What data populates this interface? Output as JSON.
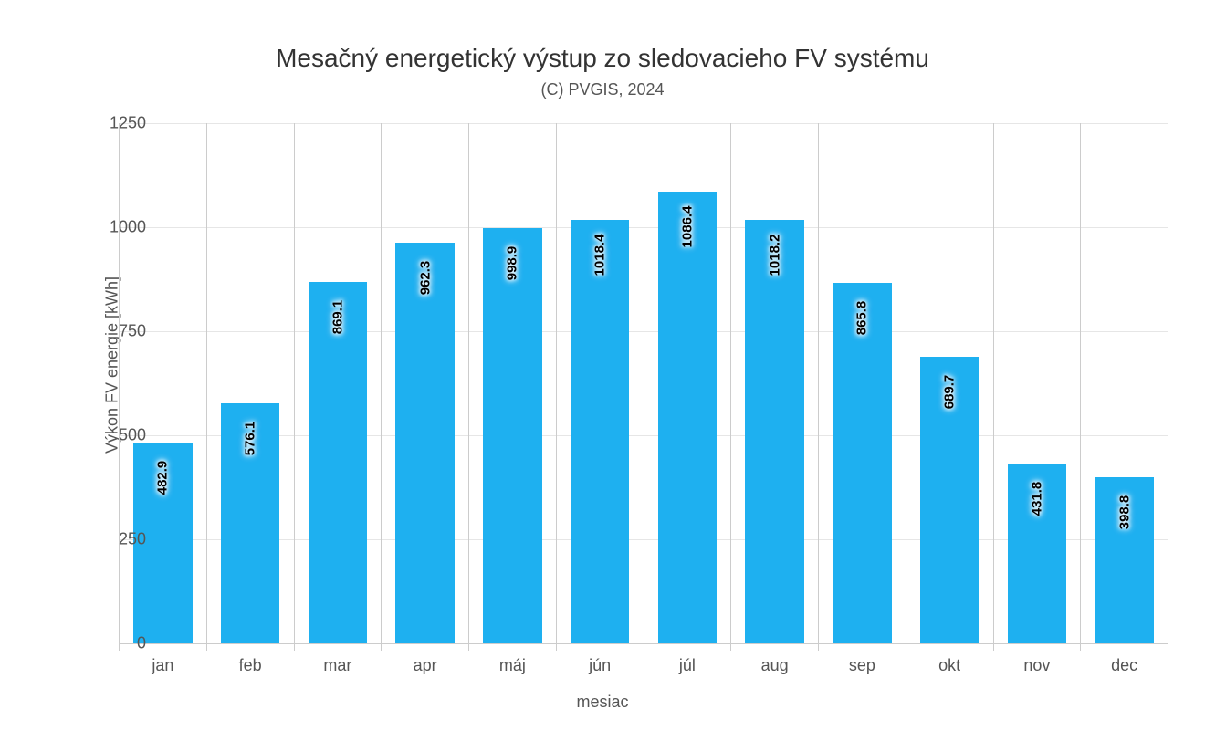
{
  "chart": {
    "type": "bar",
    "title": "Mesačný energetický výstup zo sledovacieho FV systému",
    "subtitle": "(C) PVGIS, 2024",
    "title_fontsize": 28,
    "subtitle_fontsize": 18,
    "title_color": "#333333",
    "subtitle_color": "#555555",
    "x_axis": {
      "title": "mesiac",
      "categories": [
        "jan",
        "feb",
        "mar",
        "apr",
        "máj",
        "jún",
        "júl",
        "aug",
        "sep",
        "okt",
        "nov",
        "dec"
      ],
      "label_fontsize": 18,
      "label_color": "#555555",
      "tick_color": "#cccccc"
    },
    "y_axis": {
      "title": "Výkon FV energie [kWh]",
      "min": 0,
      "max": 1250,
      "tick_step": 250,
      "ticks": [
        0,
        250,
        500,
        750,
        1000,
        1250
      ],
      "label_fontsize": 18,
      "label_color": "#555555",
      "gridline_color": "#e6e6e6",
      "baseline_color": "#cccccc"
    },
    "series": {
      "values": [
        482.9,
        576.1,
        869.1,
        962.3,
        998.9,
        1018.4,
        1086.4,
        1018.2,
        865.8,
        689.7,
        431.8,
        398.8
      ],
      "bar_color": "#1eb0f0",
      "bar_width_fraction": 0.68,
      "data_label_fontsize": 15,
      "data_label_color": "#000000",
      "data_label_glow": "#ffffff"
    },
    "background_color": "#ffffff",
    "plot_border_color": "#cccccc"
  }
}
